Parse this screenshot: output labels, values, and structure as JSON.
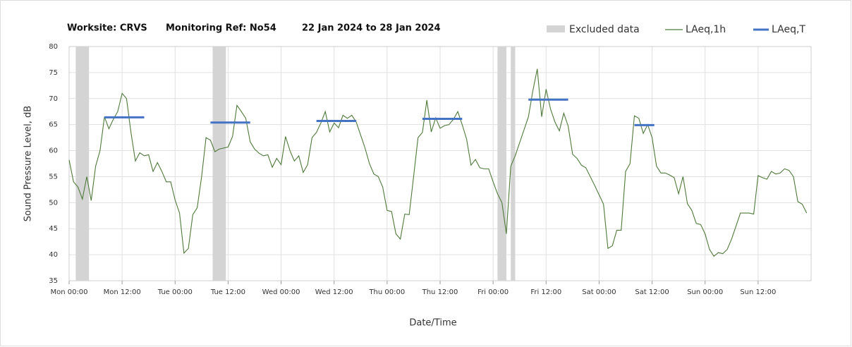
{
  "chart_data": {
    "type": "line",
    "title_parts": [
      "Worksite: CRVS",
      "Monitoring Ref: No54",
      "22 Jan 2024 to 28 Jan 2024"
    ],
    "xlabel": "Date/Time",
    "ylabel": "Sound Pressure Level, dB",
    "xlim": [
      0,
      168
    ],
    "ylim": [
      35,
      80
    ],
    "yticks": [
      35,
      40,
      45,
      50,
      55,
      60,
      65,
      70,
      75,
      80
    ],
    "xticks": [
      {
        "value": 0,
        "label": "Mon 00:00"
      },
      {
        "value": 12,
        "label": "Mon 12:00"
      },
      {
        "value": 24,
        "label": "Tue 00:00"
      },
      {
        "value": 36,
        "label": "Tue 12:00"
      },
      {
        "value": 48,
        "label": "Wed 00:00"
      },
      {
        "value": 60,
        "label": "Wed 12:00"
      },
      {
        "value": 72,
        "label": "Thu 00:00"
      },
      {
        "value": 84,
        "label": "Thu 12:00"
      },
      {
        "value": 96,
        "label": "Fri 00:00"
      },
      {
        "value": 108,
        "label": "Fri 12:00"
      },
      {
        "value": 120,
        "label": "Sat 00:00"
      },
      {
        "value": 132,
        "label": "Sat 12:00"
      },
      {
        "value": 144,
        "label": "Sun 00:00"
      },
      {
        "value": 156,
        "label": "Sun 12:00"
      }
    ],
    "grid": true,
    "excluded": {
      "name": "Excluded data",
      "color": "#d4d4d4",
      "ranges": [
        [
          1.5,
          4.5
        ],
        [
          32.5,
          35.5
        ],
        [
          97,
          99
        ],
        [
          100,
          101
        ]
      ]
    },
    "x": [
      0,
      1,
      2,
      3,
      4,
      5,
      6,
      7,
      8,
      9,
      10,
      11,
      12,
      13,
      14,
      15,
      16,
      17,
      18,
      19,
      20,
      21,
      22,
      23,
      24,
      25,
      26,
      27,
      28,
      29,
      30,
      31,
      32,
      33,
      34,
      35,
      36,
      37,
      38,
      39,
      40,
      41,
      42,
      43,
      44,
      45,
      46,
      47,
      48,
      49,
      50,
      51,
      52,
      53,
      54,
      55,
      56,
      57,
      58,
      59,
      60,
      61,
      62,
      63,
      64,
      65,
      66,
      67,
      68,
      69,
      70,
      71,
      72,
      73,
      74,
      75,
      76,
      77,
      78,
      79,
      80,
      81,
      82,
      83,
      84,
      85,
      86,
      87,
      88,
      89,
      90,
      91,
      92,
      93,
      94,
      95,
      96,
      97,
      98,
      99,
      100,
      101,
      102,
      103,
      104,
      105,
      106,
      107,
      108,
      109,
      110,
      111,
      112,
      113,
      114,
      115,
      116,
      117,
      118,
      119,
      120,
      121,
      122,
      123,
      124,
      125,
      126,
      127,
      128,
      129,
      130,
      131,
      132,
      133,
      134,
      135,
      136,
      137,
      138,
      139,
      140,
      141,
      142,
      143,
      144,
      145,
      146,
      147,
      148,
      149,
      150,
      151,
      152,
      153,
      154,
      155,
      156,
      157,
      158,
      159,
      160,
      161,
      162,
      163,
      164,
      165,
      166,
      167
    ],
    "series": [
      {
        "name": "LAeq,1h",
        "color": "#4e7a3a",
        "values": [
          58.2,
          54,
          53,
          50.7,
          55,
          50.4,
          57,
          60,
          66.5,
          64.2,
          66,
          67.5,
          71,
          70,
          63.5,
          58,
          59.6,
          59,
          59.2,
          56,
          57.7,
          56,
          54,
          54,
          50.5,
          48,
          40.3,
          41.2,
          47.7,
          49,
          55,
          62.5,
          62,
          59.8,
          60.3,
          60.5,
          60.7,
          62.7,
          68.7,
          67.5,
          66.2,
          61.7,
          60.3,
          59.5,
          59,
          59.2,
          56.8,
          58.5,
          57.3,
          62.7,
          60,
          58,
          59,
          55.8,
          57.3,
          62.5,
          63.5,
          65.3,
          67.5,
          63.6,
          65.3,
          64.4,
          66.8,
          66.2,
          66.8,
          65.5,
          63,
          60.5,
          57.5,
          55.5,
          55,
          53,
          48.5,
          48.3,
          44,
          43,
          47.8,
          47.7,
          55,
          62.5,
          63.5,
          69.7,
          63.6,
          66.3,
          64.3,
          64.8,
          65,
          66,
          67.5,
          65,
          62.2,
          57.2,
          58.3,
          56.7,
          56.5,
          56.5,
          54,
          51.7,
          50,
          44,
          57,
          59,
          61.5,
          64,
          66.5,
          71.5,
          75.7,
          66.5,
          71.8,
          68,
          65.5,
          63.8,
          67.2,
          64.7,
          59.3,
          58.5,
          57.2,
          56.7,
          55,
          53.3,
          51.5,
          49.7,
          41.2,
          41.7,
          44.7,
          44.7,
          56,
          57.5,
          66.7,
          66.2,
          63.3,
          65,
          62.5,
          57,
          55.7,
          55.7,
          55.3,
          54.8,
          51.7,
          55,
          49.8,
          48.5,
          46,
          45.8,
          44,
          41,
          39.7,
          40.4,
          40.2,
          41,
          43,
          45.5,
          48,
          48,
          48,
          47.8,
          55.2,
          54.8,
          54.5,
          56,
          55.5,
          55.7,
          56.5,
          56.2,
          55,
          50.2,
          49.7,
          48
        ]
      }
    ],
    "periods": {
      "name": "LAeq,T",
      "color": "#4472c4",
      "segments": [
        {
          "x": [
            8,
            17
          ],
          "value": 66.4
        },
        {
          "x": [
            32,
            41
          ],
          "value": 65.4
        },
        {
          "x": [
            56,
            65
          ],
          "value": 65.7
        },
        {
          "x": [
            80,
            89
          ],
          "value": 66.1
        },
        {
          "x": [
            104,
            113
          ],
          "value": 69.8
        },
        {
          "x": [
            128,
            132.5
          ],
          "value": 64.9
        }
      ]
    }
  }
}
